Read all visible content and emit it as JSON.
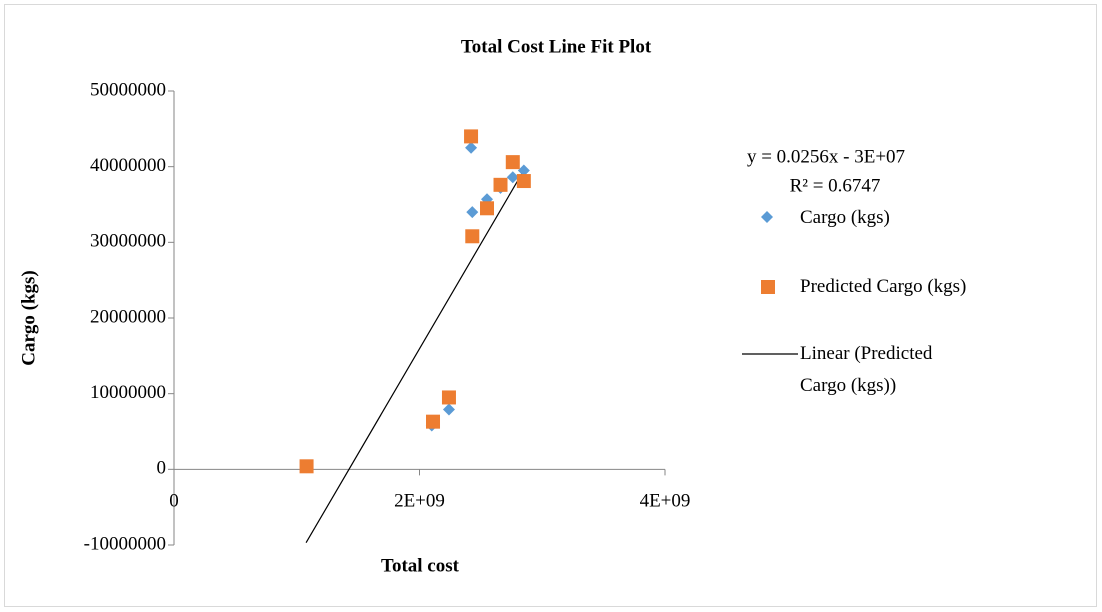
{
  "chart_data": {
    "type": "scatter",
    "title": "Total Cost Line Fit  Plot",
    "x_label": "Total cost",
    "y_label": "Cargo (kgs)",
    "xlim": [
      0,
      4000000000
    ],
    "xticks": [
      0,
      {
        "value": 2000000000,
        "label": "2E+09"
      },
      {
        "value": 4000000000,
        "label": "4E+09"
      }
    ],
    "ylim": [
      -10000000,
      50000000
    ],
    "yticks": [
      -10000000,
      0,
      10000000,
      20000000,
      30000000,
      40000000,
      50000000
    ],
    "series": [
      {
        "name": "Cargo (kgs)",
        "color": "#5b9bd5",
        "marker": "diamond",
        "x": [
          1080000000,
          2100000000,
          2240000000,
          2420000000,
          2430000000,
          2550000000,
          2660000000,
          2760000000,
          2850000000
        ],
        "values": [
          300000,
          5800000,
          7900000,
          42500000,
          34000000,
          35700000,
          37200000,
          38600000,
          39500000
        ]
      },
      {
        "name": "Predicted Cargo (kgs)",
        "color": "#ed7d31",
        "marker": "square",
        "x": [
          1080000000,
          2110000000,
          2240000000,
          2420000000,
          2430000000,
          2550000000,
          2660000000,
          2760000000,
          2850000000
        ],
        "values": [
          400000,
          6300000,
          9500000,
          44000000,
          30800000,
          34500000,
          37600000,
          40600000,
          38100000
        ]
      }
    ],
    "trendline": {
      "name": "Linear (Predicted Cargo (kgs))",
      "color": "#000000",
      "x": [
        1076000000,
        2860000000
      ],
      "values": [
        -9700000,
        39800000
      ]
    },
    "equation": "y = 0.0256x - 3E+07",
    "r_squared": "R² = 0.6747",
    "legend": "right"
  }
}
